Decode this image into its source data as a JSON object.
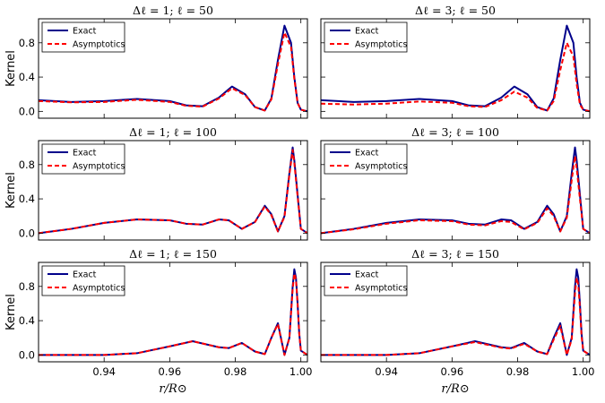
{
  "chart_data": {
    "type": "line",
    "ylabel": "Kernel",
    "xlabel": "r/R⊙",
    "xlim": [
      0.92,
      1.002
    ],
    "ylim": [
      -0.08,
      1.08
    ],
    "xticks": [
      "0.94",
      "0.96",
      "0.98",
      "1.00"
    ],
    "yticks": [
      "0.0",
      "0.4",
      "0.8"
    ],
    "legend": {
      "placement": "top-left",
      "entries": [
        "Exact",
        "Asymptotics"
      ]
    },
    "colors": {
      "exact": "#00008b",
      "asymptotics": "#ff0000"
    },
    "panels": [
      {
        "title": "Δℓ = 1; ℓ = 50",
        "series": [
          {
            "name": "Exact",
            "x": [
              0.92,
              0.93,
              0.94,
              0.95,
              0.96,
              0.965,
              0.97,
              0.975,
              0.979,
              0.983,
              0.986,
              0.989,
              0.991,
              0.993,
              0.995,
              0.997,
              0.998,
              0.999,
              1.0,
              1.002
            ],
            "y": [
              0.13,
              0.11,
              0.12,
              0.145,
              0.12,
              0.07,
              0.06,
              0.16,
              0.29,
              0.2,
              0.05,
              0.01,
              0.15,
              0.6,
              1.0,
              0.8,
              0.4,
              0.1,
              0.02,
              0.0
            ]
          },
          {
            "name": "Asymptotics",
            "x": [
              0.92,
              0.93,
              0.94,
              0.95,
              0.96,
              0.965,
              0.97,
              0.975,
              0.979,
              0.983,
              0.986,
              0.989,
              0.991,
              0.993,
              0.995,
              0.997,
              0.998,
              0.999,
              1.0,
              1.002
            ],
            "y": [
              0.12,
              0.105,
              0.11,
              0.135,
              0.11,
              0.065,
              0.055,
              0.15,
              0.27,
              0.19,
              0.05,
              0.01,
              0.14,
              0.55,
              0.92,
              0.75,
              0.38,
              0.1,
              0.02,
              0.0
            ]
          }
        ]
      },
      {
        "title": "Δℓ = 3; ℓ = 50",
        "series": [
          {
            "name": "Exact",
            "x": [
              0.92,
              0.93,
              0.94,
              0.95,
              0.96,
              0.965,
              0.97,
              0.975,
              0.979,
              0.983,
              0.986,
              0.989,
              0.991,
              0.993,
              0.995,
              0.997,
              0.998,
              0.999,
              1.0,
              1.002
            ],
            "y": [
              0.13,
              0.11,
              0.12,
              0.145,
              0.12,
              0.07,
              0.06,
              0.16,
              0.29,
              0.2,
              0.05,
              0.01,
              0.15,
              0.6,
              1.0,
              0.8,
              0.4,
              0.1,
              0.02,
              0.0
            ]
          },
          {
            "name": "Asymptotics",
            "x": [
              0.92,
              0.93,
              0.94,
              0.95,
              0.96,
              0.965,
              0.97,
              0.975,
              0.979,
              0.983,
              0.986,
              0.989,
              0.991,
              0.993,
              0.995,
              0.997,
              0.998,
              0.999,
              1.0,
              1.002
            ],
            "y": [
              0.09,
              0.08,
              0.09,
              0.115,
              0.1,
              0.06,
              0.05,
              0.13,
              0.23,
              0.16,
              0.04,
              0.01,
              0.12,
              0.48,
              0.8,
              0.64,
              0.32,
              0.08,
              0.02,
              0.0
            ]
          }
        ]
      },
      {
        "title": "Δℓ = 1; ℓ = 100",
        "series": [
          {
            "name": "Exact",
            "x": [
              0.92,
              0.93,
              0.94,
              0.95,
              0.96,
              0.965,
              0.97,
              0.975,
              0.978,
              0.982,
              0.986,
              0.989,
              0.991,
              0.993,
              0.995,
              0.9965,
              0.9975,
              0.998,
              0.999,
              1.0,
              1.002
            ],
            "y": [
              0.0,
              0.05,
              0.12,
              0.16,
              0.15,
              0.11,
              0.1,
              0.16,
              0.15,
              0.05,
              0.13,
              0.32,
              0.22,
              0.02,
              0.2,
              0.7,
              1.0,
              0.85,
              0.45,
              0.05,
              0.0
            ]
          },
          {
            "name": "Asymptotics",
            "x": [
              0.92,
              0.93,
              0.94,
              0.95,
              0.96,
              0.965,
              0.97,
              0.975,
              0.978,
              0.982,
              0.986,
              0.989,
              0.991,
              0.993,
              0.995,
              0.9965,
              0.9975,
              0.998,
              0.999,
              1.0,
              1.002
            ],
            "y": [
              0.0,
              0.05,
              0.12,
              0.16,
              0.15,
              0.11,
              0.1,
              0.16,
              0.15,
              0.05,
              0.13,
              0.31,
              0.21,
              0.02,
              0.19,
              0.68,
              0.97,
              0.82,
              0.43,
              0.05,
              0.0
            ]
          }
        ]
      },
      {
        "title": "Δℓ = 3; ℓ = 100",
        "series": [
          {
            "name": "Exact",
            "x": [
              0.92,
              0.93,
              0.94,
              0.95,
              0.96,
              0.965,
              0.97,
              0.975,
              0.978,
              0.982,
              0.986,
              0.989,
              0.991,
              0.993,
              0.995,
              0.9965,
              0.9975,
              0.998,
              0.999,
              1.0,
              1.002
            ],
            "y": [
              0.0,
              0.05,
              0.12,
              0.16,
              0.15,
              0.11,
              0.1,
              0.16,
              0.15,
              0.05,
              0.13,
              0.32,
              0.22,
              0.02,
              0.2,
              0.7,
              1.0,
              0.85,
              0.45,
              0.05,
              0.0
            ]
          },
          {
            "name": "Asymptotics",
            "x": [
              0.92,
              0.93,
              0.94,
              0.95,
              0.96,
              0.965,
              0.97,
              0.975,
              0.978,
              0.982,
              0.986,
              0.989,
              0.991,
              0.993,
              0.995,
              0.9965,
              0.9975,
              0.998,
              0.999,
              1.0,
              1.002
            ],
            "y": [
              0.0,
              0.045,
              0.11,
              0.15,
              0.14,
              0.1,
              0.09,
              0.14,
              0.13,
              0.045,
              0.12,
              0.29,
              0.2,
              0.02,
              0.18,
              0.62,
              0.9,
              0.76,
              0.4,
              0.05,
              0.0
            ]
          }
        ]
      },
      {
        "title": "Δℓ = 1; ℓ = 150",
        "series": [
          {
            "name": "Exact",
            "x": [
              0.92,
              0.93,
              0.94,
              0.95,
              0.96,
              0.967,
              0.975,
              0.978,
              0.982,
              0.986,
              0.989,
              0.991,
              0.993,
              0.995,
              0.9965,
              0.9975,
              0.998,
              0.9985,
              0.999,
              0.9995,
              1.0,
              1.002
            ],
            "y": [
              0.0,
              0.0,
              0.0,
              0.02,
              0.1,
              0.16,
              0.09,
              0.08,
              0.14,
              0.04,
              0.01,
              0.2,
              0.37,
              0.0,
              0.2,
              0.8,
              1.0,
              0.9,
              0.6,
              0.25,
              0.05,
              0.0
            ]
          },
          {
            "name": "Asymptotics",
            "x": [
              0.92,
              0.93,
              0.94,
              0.95,
              0.96,
              0.967,
              0.975,
              0.978,
              0.982,
              0.986,
              0.989,
              0.991,
              0.993,
              0.995,
              0.9965,
              0.9975,
              0.998,
              0.9985,
              0.999,
              0.9995,
              1.0,
              1.002
            ],
            "y": [
              0.0,
              0.0,
              0.0,
              0.02,
              0.1,
              0.16,
              0.09,
              0.08,
              0.14,
              0.04,
              0.01,
              0.2,
              0.36,
              0.0,
              0.2,
              0.77,
              0.95,
              0.88,
              0.6,
              0.25,
              0.05,
              0.0
            ]
          }
        ]
      },
      {
        "title": "Δℓ = 3; ℓ = 150",
        "series": [
          {
            "name": "Exact",
            "x": [
              0.92,
              0.93,
              0.94,
              0.95,
              0.96,
              0.967,
              0.975,
              0.978,
              0.982,
              0.986,
              0.989,
              0.991,
              0.993,
              0.995,
              0.9965,
              0.9975,
              0.998,
              0.9985,
              0.999,
              0.9995,
              1.0,
              1.002
            ],
            "y": [
              0.0,
              0.0,
              0.0,
              0.02,
              0.1,
              0.16,
              0.09,
              0.08,
              0.14,
              0.04,
              0.01,
              0.2,
              0.37,
              0.0,
              0.2,
              0.8,
              1.0,
              0.9,
              0.6,
              0.25,
              0.05,
              0.0
            ]
          },
          {
            "name": "Asymptotics",
            "x": [
              0.92,
              0.93,
              0.94,
              0.95,
              0.96,
              0.967,
              0.975,
              0.978,
              0.982,
              0.986,
              0.989,
              0.991,
              0.993,
              0.995,
              0.9965,
              0.9975,
              0.998,
              0.9985,
              0.999,
              0.9995,
              1.0,
              1.002
            ],
            "y": [
              0.0,
              0.0,
              0.0,
              0.02,
              0.1,
              0.15,
              0.085,
              0.075,
              0.13,
              0.04,
              0.01,
              0.18,
              0.34,
              0.0,
              0.18,
              0.72,
              0.9,
              0.82,
              0.55,
              0.22,
              0.05,
              0.0
            ]
          }
        ]
      }
    ]
  }
}
